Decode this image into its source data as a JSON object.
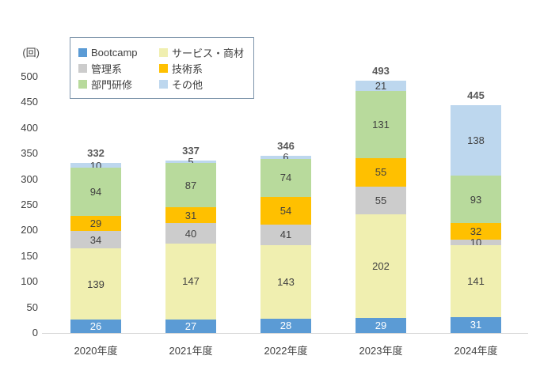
{
  "chart_data": {
    "type": "bar",
    "stacked": true,
    "title": "",
    "ylabel": "(回)",
    "xlabel": "",
    "categories": [
      "2020年度",
      "2021年度",
      "2022年度",
      "2023年度",
      "2024年度"
    ],
    "series": [
      {
        "name": "Bootcamp",
        "color": "#5b9bd5",
        "label_color": "#ffffff",
        "values": [
          26,
          27,
          28,
          29,
          31
        ]
      },
      {
        "name": "サービス・商材",
        "color": "#f0efb0",
        "label_color": "#404040",
        "values": [
          139,
          147,
          143,
          202,
          141
        ]
      },
      {
        "name": "管理系",
        "color": "#cccccc",
        "label_color": "#404040",
        "values": [
          34,
          40,
          41,
          55,
          10
        ]
      },
      {
        "name": "技術系",
        "color": "#ffc000",
        "label_color": "#404040",
        "values": [
          29,
          31,
          54,
          55,
          32
        ]
      },
      {
        "name": "部門研修",
        "color": "#b8da9c",
        "label_color": "#404040",
        "values": [
          94,
          87,
          74,
          131,
          93
        ]
      },
      {
        "name": "その他",
        "color": "#bdd7ee",
        "label_color": "#404040",
        "values": [
          10,
          5,
          6,
          21,
          138
        ]
      }
    ],
    "totals": [
      332,
      337,
      346,
      493,
      445
    ],
    "ylim": [
      0,
      500
    ],
    "ytick_step": 50,
    "yticks": [
      0,
      50,
      100,
      150,
      200,
      250,
      300,
      350,
      400,
      450,
      500
    ],
    "grid": false,
    "legend_position": "top-left",
    "legend_columns": 2
  },
  "colors": {
    "axis_line": "#d6d6d6",
    "axis_text": "#404040",
    "total_text": "#595959",
    "legend_border": "#7d94aa"
  }
}
